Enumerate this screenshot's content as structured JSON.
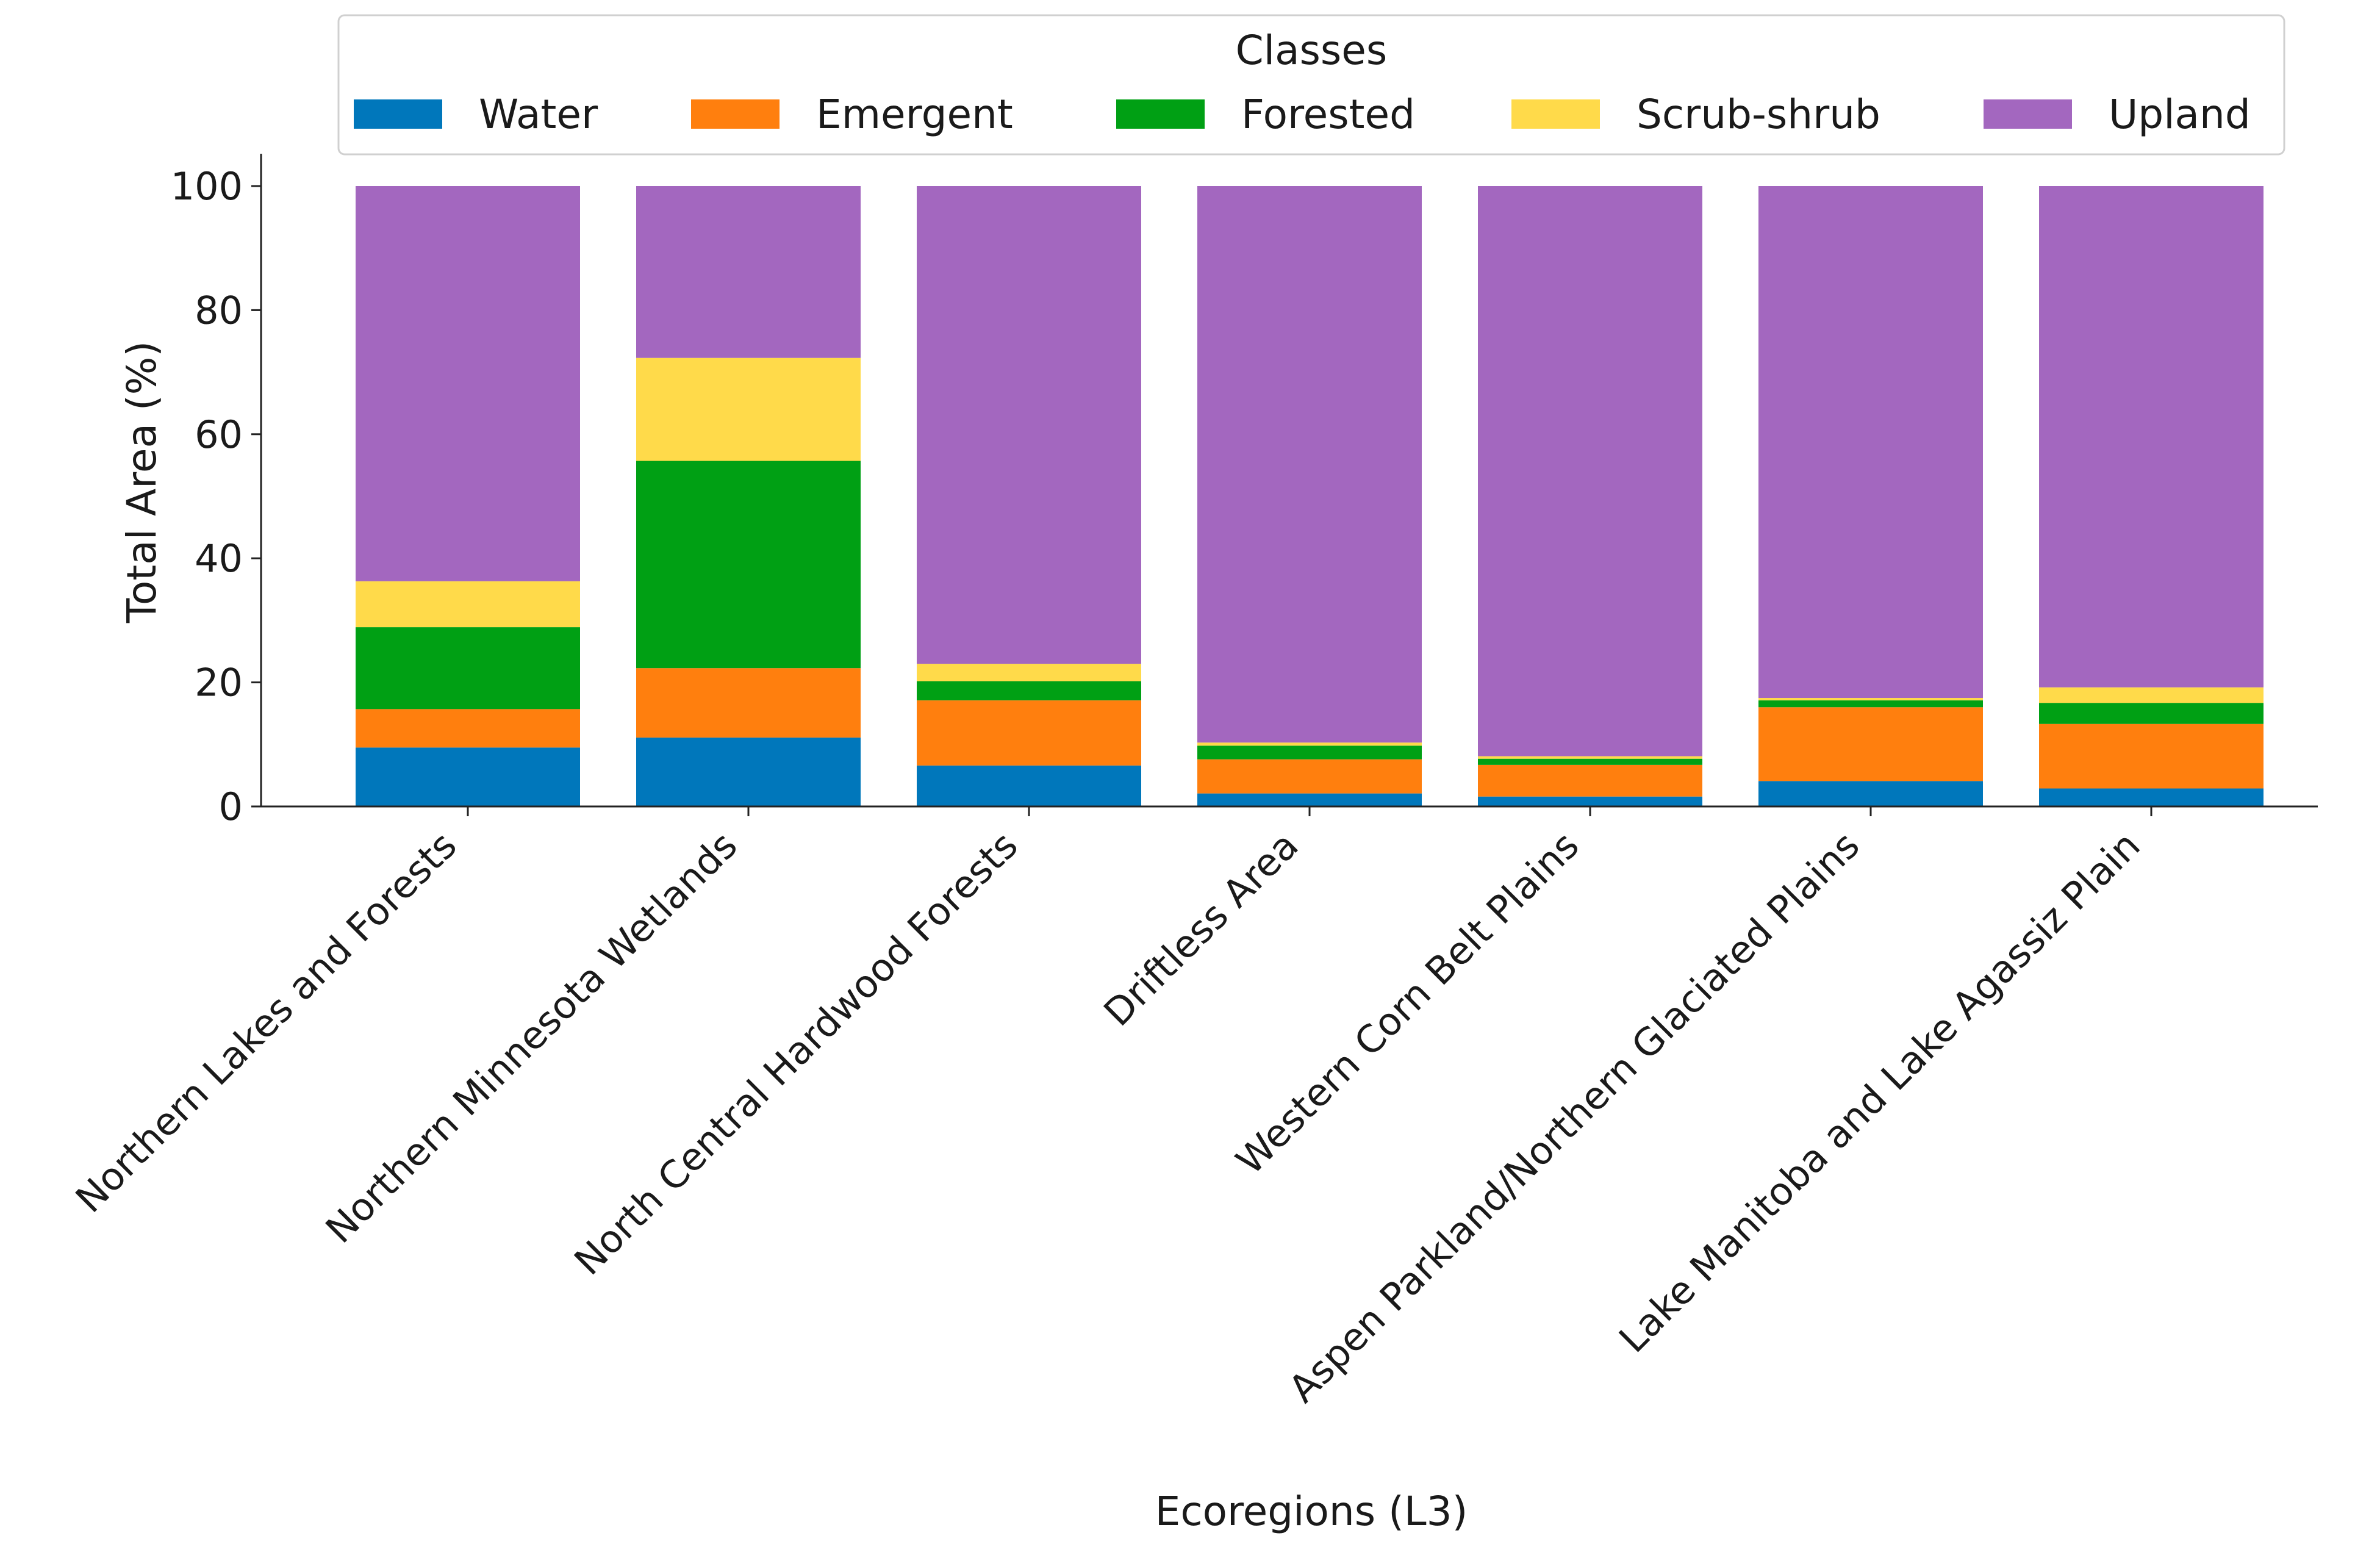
{
  "chart_data": {
    "type": "bar",
    "stacked": true,
    "title": "",
    "xlabel": "Ecoregions (L3)",
    "ylabel": "Total Area (%)",
    "ylim": [
      0,
      105
    ],
    "yticks": [
      0,
      20,
      40,
      60,
      80,
      100
    ],
    "grid": false,
    "legend": {
      "title": "Classes",
      "placement": "top-center"
    },
    "categories": [
      "Northern Lakes and Forests",
      "Northern Minnesota Wetlands",
      "North Central Hardwood Forests",
      "Driftless Area",
      "Western Corn Belt Plains",
      "Aspen Parkland/Northern Glaciated Plains",
      "Lake Manitoba and Lake Agassiz Plain"
    ],
    "series": [
      {
        "name": "Water",
        "color": "#0077bb",
        "values": [
          9.5,
          11.1,
          6.6,
          2.1,
          1.6,
          4.1,
          2.9
        ]
      },
      {
        "name": "Emergent",
        "color": "#ff7f0e",
        "values": [
          6.2,
          11.2,
          10.5,
          5.5,
          5.1,
          11.9,
          10.4
        ]
      },
      {
        "name": "Forested",
        "color": "#00a014",
        "values": [
          13.2,
          33.4,
          3.1,
          2.2,
          1.0,
          1.1,
          3.4
        ]
      },
      {
        "name": "Scrub-shrub",
        "color": "#ffda4a",
        "values": [
          7.4,
          16.6,
          2.8,
          0.5,
          0.4,
          0.4,
          2.5
        ]
      },
      {
        "name": "Upland",
        "color": "#a367bf",
        "values": [
          63.7,
          27.7,
          77.0,
          89.7,
          91.9,
          82.5,
          80.8
        ]
      }
    ]
  }
}
